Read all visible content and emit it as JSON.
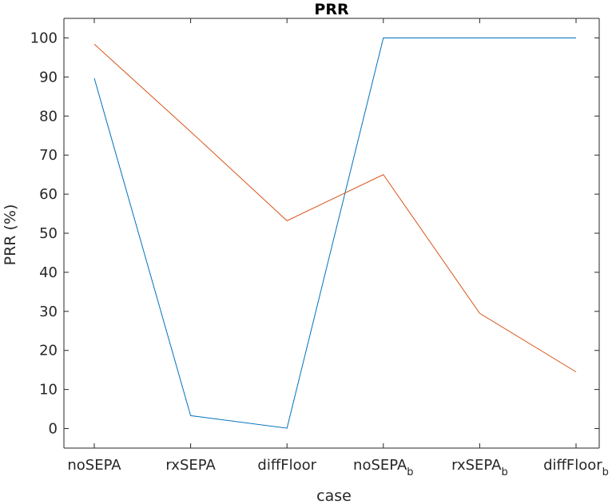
{
  "chart_data": {
    "type": "line",
    "title": "PRR",
    "xlabel": "case",
    "ylabel": "PRR (%)",
    "categories": [
      {
        "base": "noSEPA",
        "sub": ""
      },
      {
        "base": "rxSEPA",
        "sub": ""
      },
      {
        "base": "diffFloor",
        "sub": ""
      },
      {
        "base": "noSEPA",
        "sub": "b"
      },
      {
        "base": "rxSEPA",
        "sub": "b"
      },
      {
        "base": "diffFloor",
        "sub": "b"
      }
    ],
    "ylim": [
      -5,
      105
    ],
    "yticks": [
      0,
      10,
      20,
      30,
      40,
      50,
      60,
      70,
      80,
      90,
      100
    ],
    "ytick_labels": [
      "0",
      "10",
      "20",
      "30",
      "40",
      "50",
      "60",
      "70",
      "80",
      "90",
      "100"
    ],
    "grid": false,
    "series": [
      {
        "color": "#0072BD",
        "values": [
          89.7,
          3.3,
          0.1,
          100,
          100,
          100
        ]
      },
      {
        "color": "#D95319",
        "values": [
          98.4,
          76.0,
          53.2,
          65.0,
          29.5,
          14.5
        ]
      }
    ]
  }
}
